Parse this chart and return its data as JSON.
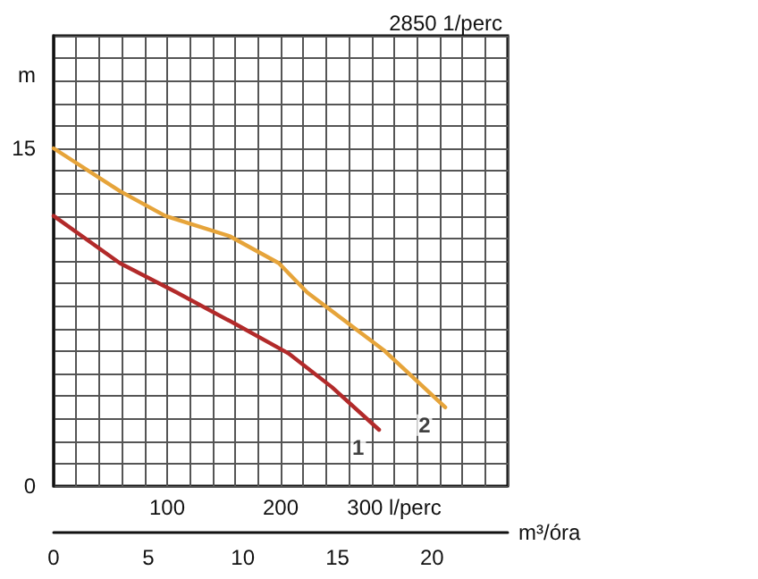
{
  "chart_data": {
    "type": "line",
    "title": "2850 1/perc",
    "xlabel": "m³/óra",
    "ylabel": "m",
    "xlim": [
      0,
      24
    ],
    "xticks": [
      0,
      5,
      10,
      15,
      20
    ],
    "x2lim": [
      0,
      400
    ],
    "x2ticks": [
      {
        "value": 0,
        "label": null
      },
      {
        "value": 20,
        "label": null
      },
      {
        "value": 40,
        "label": null
      },
      {
        "value": 60,
        "label": null
      },
      {
        "value": 80,
        "label": null
      },
      {
        "value": 100,
        "label": "100"
      },
      {
        "value": 120,
        "label": null
      },
      {
        "value": 140,
        "label": null
      },
      {
        "value": 160,
        "label": null
      },
      {
        "value": 180,
        "label": null
      },
      {
        "value": 200,
        "label": "200"
      },
      {
        "value": 220,
        "label": null
      },
      {
        "value": 240,
        "label": null
      },
      {
        "value": 260,
        "label": null
      },
      {
        "value": 280,
        "label": null
      },
      {
        "value": 300,
        "label": "300 l/perc"
      },
      {
        "value": 320,
        "label": null
      },
      {
        "value": 340,
        "label": null
      },
      {
        "value": 360,
        "label": null
      },
      {
        "value": 380,
        "label": null
      },
      {
        "value": 400,
        "label": null
      }
    ],
    "ylim": [
      0,
      20
    ],
    "yticks": [
      0,
      {
        "value": 1,
        "label": null
      },
      {
        "value": 2,
        "label": null
      },
      {
        "value": 3,
        "label": null
      },
      {
        "value": 4,
        "label": null
      },
      {
        "value": 5,
        "label": null
      },
      {
        "value": 6,
        "label": null
      },
      {
        "value": 7,
        "label": null
      },
      {
        "value": 8,
        "label": null
      },
      {
        "value": 9,
        "label": null
      },
      {
        "value": 10,
        "label": null
      },
      {
        "value": 11,
        "label": null
      },
      {
        "value": 12,
        "label": null
      },
      {
        "value": 13,
        "label": null
      },
      {
        "value": 14,
        "label": null
      },
      15,
      {
        "value": 16,
        "label": null
      },
      {
        "value": 17,
        "label": null
      },
      {
        "value": 18,
        "label": null
      },
      {
        "value": 19,
        "label": null
      },
      {
        "value": 20,
        "label": null
      }
    ],
    "grid": true,
    "marker": "none",
    "line_style": "solid",
    "series": [
      {
        "color": "#b22a2a",
        "x": [
          0,
          3.5,
          6.5,
          9.6,
          12.4,
          14.7,
          17.2
        ],
        "values": [
          12.0,
          9.9,
          8.6,
          7.2,
          5.9,
          4.4,
          2.5
        ]
      },
      {
        "color": "#e6a43a",
        "x": [
          0,
          3.5,
          5.9,
          9.3,
          11.9,
          13.4,
          17.5,
          20.7
        ],
        "values": [
          15.0,
          13.1,
          12.0,
          11.1,
          9.9,
          8.6,
          6.0,
          3.5
        ]
      }
    ],
    "annotations": [
      "1",
      "2"
    ]
  }
}
